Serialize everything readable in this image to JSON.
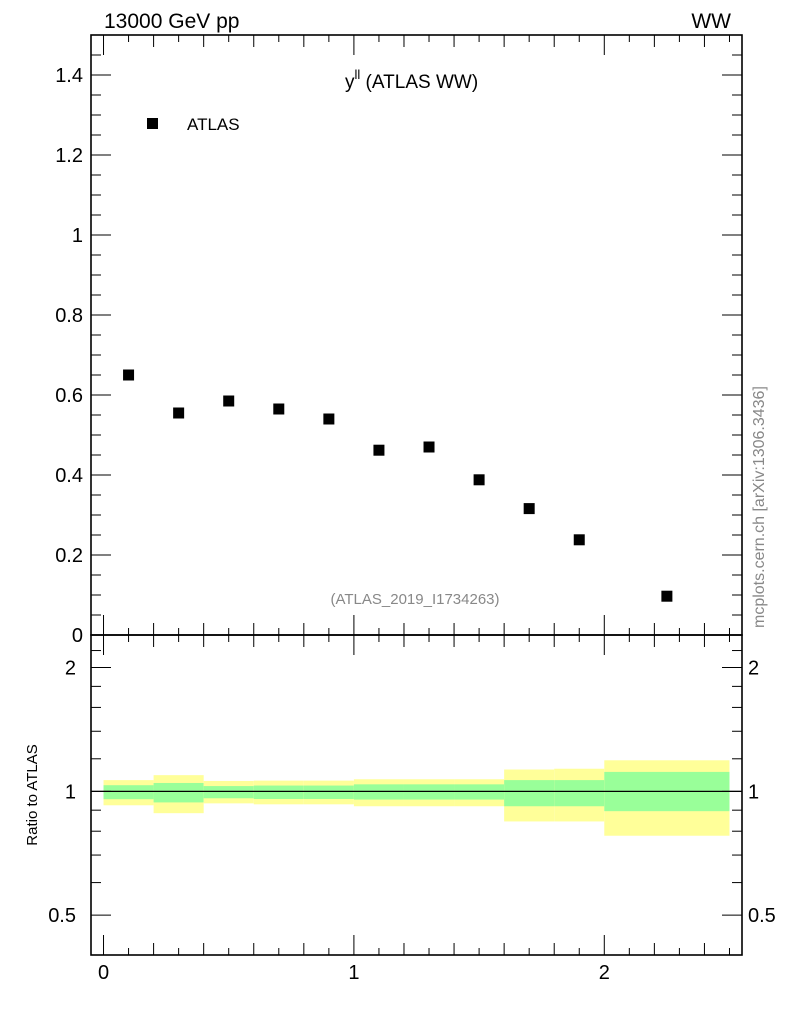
{
  "header": {
    "left_label": "13000 GeV pp",
    "right_label": "WW"
  },
  "side_label": "mcplots.cern.ch [arXiv:1306.3436]",
  "chart_data": [
    {
      "type": "scatter",
      "title_main": "y",
      "title_sup": "ll",
      "title_suffix": " (ATLAS WW)",
      "analysis_label": "(ATLAS_2019_I1734263)",
      "legend": [
        "ATLAS"
      ],
      "xlim": [
        -0.05,
        2.55
      ],
      "ylim": [
        0,
        1.5
      ],
      "yticks": [
        0,
        0.2,
        0.4,
        0.6,
        0.8,
        1,
        1.2,
        1.4
      ],
      "ytick_labels": [
        "0",
        "0.2",
        "0.4",
        "0.6",
        "0.8",
        "1",
        "1.2",
        "1.4"
      ],
      "series": [
        {
          "name": "ATLAS",
          "x": [
            0.1,
            0.3,
            0.5,
            0.7,
            0.9,
            1.1,
            1.3,
            1.5,
            1.7,
            1.9,
            2.25
          ],
          "values": [
            0.65,
            0.555,
            0.585,
            0.565,
            0.54,
            0.462,
            0.47,
            0.388,
            0.316,
            0.238,
            0.097
          ]
        }
      ]
    },
    {
      "type": "area",
      "ylabel": "Ratio to ATLAS",
      "xlim": [
        -0.05,
        2.55
      ],
      "ylim": [
        0.4,
        2.4
      ],
      "ytick_labels": [
        "0.5",
        "1",
        "2"
      ],
      "yticks": [
        0.5,
        1,
        2
      ],
      "xtick_labels": [
        "0",
        "1",
        "2"
      ],
      "xticks": [
        0,
        1,
        2
      ],
      "reference_line": 1,
      "bins": [
        {
          "x0": 0.0,
          "x1": 0.2,
          "stat_lo": 0.957,
          "stat_hi": 1.035,
          "tot_lo": 0.925,
          "tot_hi": 1.065
        },
        {
          "x0": 0.2,
          "x1": 0.4,
          "stat_lo": 0.94,
          "stat_hi": 1.048,
          "tot_lo": 0.885,
          "tot_hi": 1.095
        },
        {
          "x0": 0.4,
          "x1": 0.6,
          "stat_lo": 0.962,
          "stat_hi": 1.03,
          "tot_lo": 0.935,
          "tot_hi": 1.06
        },
        {
          "x0": 0.6,
          "x1": 0.8,
          "stat_lo": 0.958,
          "stat_hi": 1.033,
          "tot_lo": 0.93,
          "tot_hi": 1.062
        },
        {
          "x0": 0.8,
          "x1": 1.0,
          "stat_lo": 0.958,
          "stat_hi": 1.033,
          "tot_lo": 0.93,
          "tot_hi": 1.062
        },
        {
          "x0": 1.0,
          "x1": 1.2,
          "stat_lo": 0.955,
          "stat_hi": 1.04,
          "tot_lo": 0.92,
          "tot_hi": 1.07
        },
        {
          "x0": 1.2,
          "x1": 1.4,
          "stat_lo": 0.955,
          "stat_hi": 1.04,
          "tot_lo": 0.92,
          "tot_hi": 1.07
        },
        {
          "x0": 1.4,
          "x1": 1.6,
          "stat_lo": 0.955,
          "stat_hi": 1.04,
          "tot_lo": 0.92,
          "tot_hi": 1.07
        },
        {
          "x0": 1.6,
          "x1": 1.8,
          "stat_lo": 0.92,
          "stat_hi": 1.065,
          "tot_lo": 0.845,
          "tot_hi": 1.13
        },
        {
          "x0": 1.8,
          "x1": 2.0,
          "stat_lo": 0.92,
          "stat_hi": 1.065,
          "tot_lo": 0.845,
          "tot_hi": 1.135
        },
        {
          "x0": 2.0,
          "x1": 2.5,
          "stat_lo": 0.895,
          "stat_hi": 1.115,
          "tot_lo": 0.78,
          "tot_hi": 1.19
        }
      ]
    }
  ]
}
